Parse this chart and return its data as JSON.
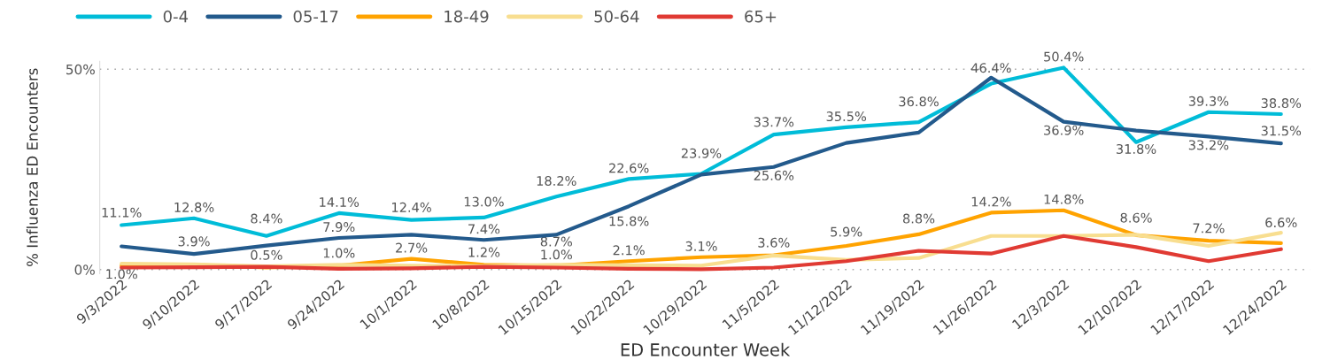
{
  "chart_data": {
    "type": "line",
    "xlabel": "ED Encounter Week",
    "ylabel": "% Influenza ED Encounters",
    "categories": [
      "9/3/2022",
      "9/10/2022",
      "9/17/2022",
      "9/24/2022",
      "10/1/2022",
      "10/8/2022",
      "10/15/2022",
      "10/22/2022",
      "10/29/2022",
      "11/5/2022",
      "11/12/2022",
      "11/19/2022",
      "11/26/2022",
      "12/3/2022",
      "12/10/2022",
      "12/17/2022",
      "12/24/2022"
    ],
    "series": [
      {
        "name": "0-4",
        "color": "#00bcd8",
        "values": [
          11.1,
          12.8,
          8.4,
          14.1,
          12.4,
          13.0,
          18.2,
          22.6,
          23.9,
          33.7,
          35.5,
          36.8,
          46.4,
          50.4,
          31.8,
          39.3,
          38.8
        ],
        "value_labels": [
          "11.1%",
          "12.8%",
          "8.4%",
          "14.1%",
          "12.4%",
          "13.0%",
          "18.2%",
          "22.6%",
          "23.9%",
          "33.7%",
          "35.5%",
          "36.8%",
          "46.4%",
          "50.4%",
          "31.8%",
          "39.3%",
          "38.8%"
        ]
      },
      {
        "name": "05-17",
        "color": "#235a8c",
        "values": [
          5.8,
          3.9,
          6.0,
          7.9,
          8.7,
          7.4,
          8.7,
          15.8,
          23.7,
          25.6,
          31.6,
          34.2,
          47.9,
          36.9,
          34.7,
          33.2,
          31.5
        ],
        "value_labels": [
          null,
          "3.9%",
          null,
          "7.9%",
          null,
          "7.4%",
          "8.7%",
          "15.8%",
          null,
          "25.6%",
          null,
          null,
          null,
          "36.9%",
          null,
          "33.2%",
          "31.5%"
        ]
      },
      {
        "name": "18-49",
        "color": "#ffa300",
        "values": [
          1.0,
          1.2,
          0.5,
          1.0,
          2.7,
          1.2,
          1.0,
          2.1,
          3.1,
          3.6,
          5.9,
          8.8,
          14.2,
          14.8,
          8.6,
          7.2,
          6.6
        ],
        "value_labels": [
          "1.0%",
          null,
          "0.5%",
          "1.0%",
          "2.7%",
          "1.2%",
          "1.0%",
          "2.1%",
          "3.1%",
          "3.6%",
          "5.9%",
          "8.8%",
          "14.2%",
          "14.8%",
          "8.6%",
          "7.2%",
          "6.6%"
        ]
      },
      {
        "name": "50-64",
        "color": "#f8de90",
        "values": [
          1.5,
          1.3,
          0.8,
          1.2,
          1.0,
          0.9,
          1.2,
          1.1,
          1.0,
          3.5,
          2.4,
          2.9,
          8.4,
          8.4,
          8.7,
          5.9,
          9.2
        ]
      },
      {
        "name": "65+",
        "color": "#e03a33",
        "values": [
          0.5,
          0.6,
          0.7,
          0.2,
          0.3,
          0.7,
          0.5,
          0.2,
          0.1,
          0.5,
          2.1,
          4.7,
          4.0,
          8.4,
          5.6,
          2.1,
          5.1
        ]
      }
    ],
    "ylim": [
      -1,
      52
    ],
    "yticks": [
      {
        "value": 0,
        "label": "0%"
      },
      {
        "value": 50,
        "label": "50%"
      }
    ],
    "grid": "y",
    "legend": "top left",
    "marker": "none",
    "line_style": "solid"
  }
}
